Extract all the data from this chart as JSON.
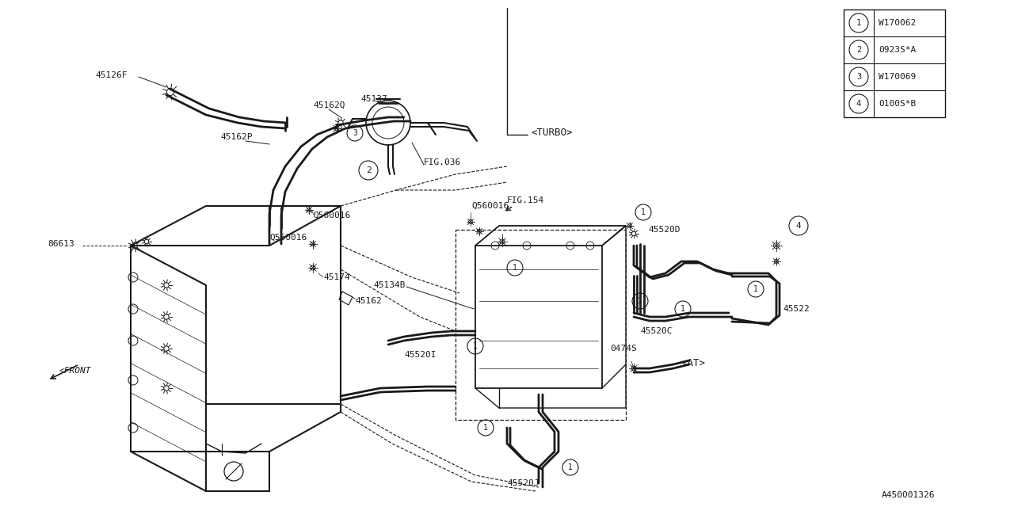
{
  "bg_color": "#ffffff",
  "line_color": "#1a1a1a",
  "legend_items": [
    {
      "num": "1",
      "code": "W170062"
    },
    {
      "num": "2",
      "code": "0923S*A"
    },
    {
      "num": "3",
      "code": "W170069"
    },
    {
      "num": "4",
      "code": "0100S*B"
    }
  ],
  "ref_num": "A450001326",
  "fig_w": 12.8,
  "fig_h": 6.4,
  "dpi": 100
}
